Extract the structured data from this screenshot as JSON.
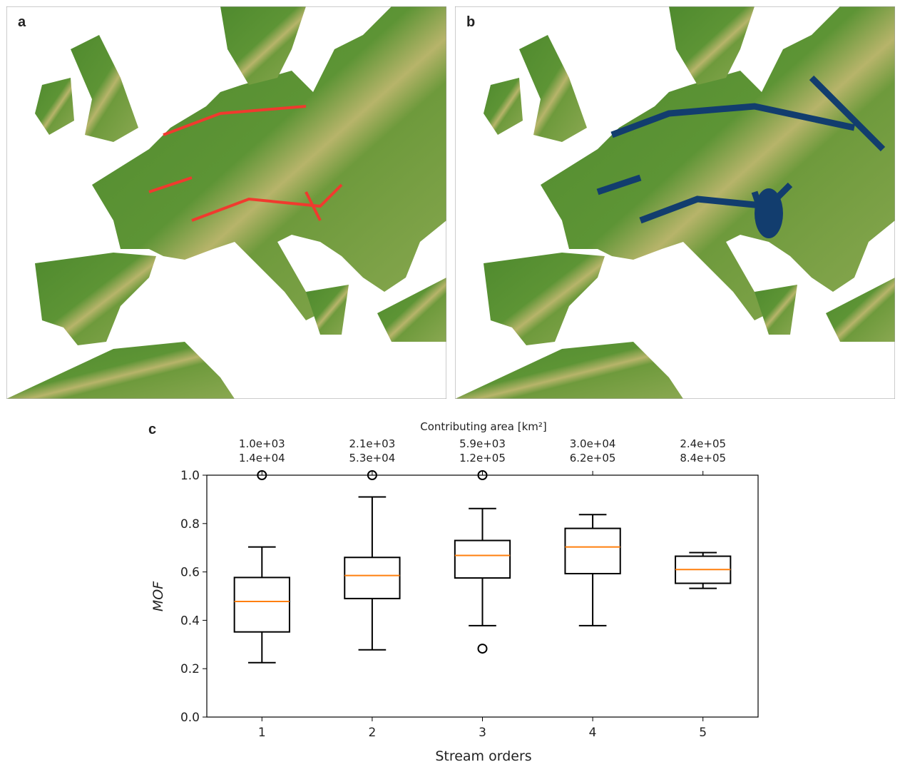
{
  "panel_labels": [
    "a",
    "b"
  ],
  "chart_data": {
    "type": "box",
    "panel_label": "c",
    "xlabel": "Stream orders",
    "ylabel": "MOF",
    "top_axis_label": "Contributing area [km²]",
    "categories": [
      "1",
      "2",
      "3",
      "4",
      "5"
    ],
    "top_tick_labels": [
      [
        "1.0e+03",
        "1.4e+04"
      ],
      [
        "2.1e+03",
        "5.3e+04"
      ],
      [
        "5.9e+03",
        "1.2e+05"
      ],
      [
        "3.0e+04",
        "6.2e+05"
      ],
      [
        "2.4e+05",
        "8.4e+05"
      ]
    ],
    "boxes": [
      {
        "whislo": 0.225,
        "q1": 0.352,
        "med": 0.478,
        "q3": 0.577,
        "whishi": 0.703,
        "fliers": [
          1.0
        ]
      },
      {
        "whislo": 0.278,
        "q1": 0.49,
        "med": 0.585,
        "q3": 0.66,
        "whishi": 0.91,
        "fliers": [
          1.0
        ]
      },
      {
        "whislo": 0.378,
        "q1": 0.575,
        "med": 0.668,
        "q3": 0.73,
        "whishi": 0.862,
        "fliers": [
          1.0,
          0.283
        ]
      },
      {
        "whislo": 0.378,
        "q1": 0.593,
        "med": 0.703,
        "q3": 0.78,
        "whishi": 0.837,
        "fliers": []
      },
      {
        "whislo": 0.532,
        "q1": 0.553,
        "med": 0.61,
        "q3": 0.665,
        "whishi": 0.68,
        "fliers": []
      }
    ],
    "box_color": "#000000",
    "median_color": "#ff7f0e",
    "ylim": [
      0,
      1
    ],
    "yticks": [
      {
        "value": 0,
        "label": "0.0"
      },
      0.2,
      0.4,
      0.6,
      0.8,
      {
        "value": 1,
        "label": "1.0"
      }
    ]
  }
}
